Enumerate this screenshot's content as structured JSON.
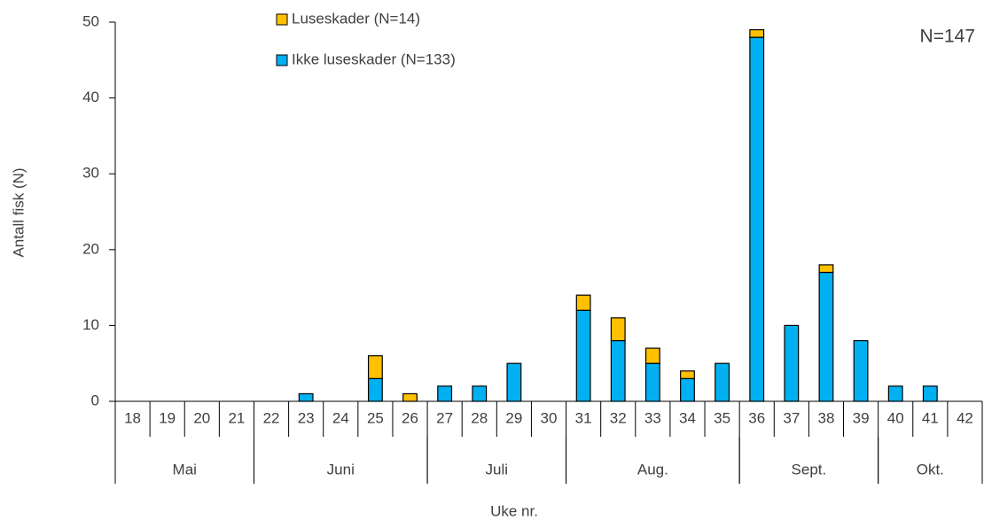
{
  "chart_data": {
    "type": "stacked_bar",
    "x_label": "Uke nr.",
    "y_label": "Antall fisk (N)",
    "annotation": "N=147",
    "categories": [
      "18",
      "19",
      "20",
      "21",
      "22",
      "23",
      "24",
      "25",
      "26",
      "27",
      "28",
      "29",
      "30",
      "31",
      "32",
      "33",
      "34",
      "35",
      "36",
      "37",
      "38",
      "39",
      "40",
      "41",
      "42"
    ],
    "groups": [
      {
        "label": "Mai",
        "span": 4
      },
      {
        "label": "Juni",
        "span": 5
      },
      {
        "label": "Juli",
        "span": 4
      },
      {
        "label": "Aug.",
        "span": 5
      },
      {
        "label": "Sept.",
        "span": 4
      },
      {
        "label": "Okt.",
        "span": 3
      }
    ],
    "series": [
      {
        "name": "Ikke luseskader (N=133)",
        "color": "#00b0f0",
        "values": [
          0,
          0,
          0,
          0,
          0,
          1,
          0,
          3,
          0,
          2,
          2,
          5,
          0,
          12,
          8,
          5,
          3,
          5,
          48,
          10,
          17,
          8,
          2,
          2,
          0
        ]
      },
      {
        "name": "Luseskader (N=14)",
        "color": "#ffc000",
        "values": [
          0,
          0,
          0,
          0,
          0,
          0,
          0,
          3,
          1,
          0,
          0,
          0,
          0,
          2,
          3,
          2,
          1,
          0,
          1,
          0,
          1,
          0,
          0,
          0,
          0
        ]
      }
    ],
    "ylim": [
      0,
      50
    ],
    "yticks": [
      0,
      10,
      20,
      30,
      40,
      50
    ]
  }
}
